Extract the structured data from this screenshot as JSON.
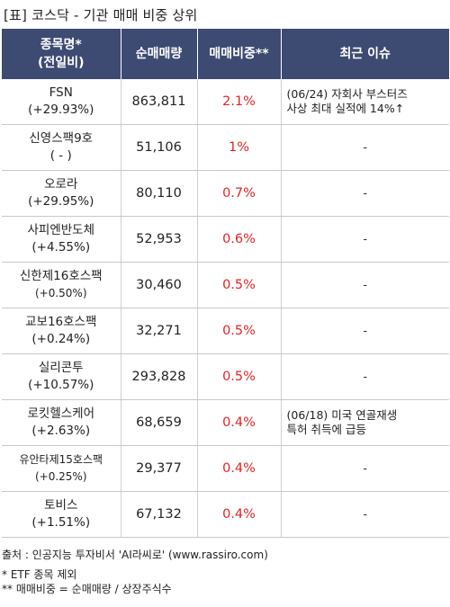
{
  "title": "[표] 코스닥 - 기관 매매 비중 상위",
  "headers": {
    "name_line1": "종목명*",
    "name_line2": "(전일비)",
    "volume": "순매매량",
    "ratio": "매매비중**",
    "issue": "최근 이슈"
  },
  "rows": [
    {
      "name": "FSN",
      "change": "(+29.93%)",
      "volume": "863,811",
      "ratio": "2.1%",
      "issue_line1": "(06/24) 자회사 부스터즈",
      "issue_line2": "사상 최대 실적에 14%↑"
    },
    {
      "name": "신영스팩9호",
      "change": "( - )",
      "volume": "51,106",
      "ratio": "1%",
      "issue_line1": "-",
      "issue_line2": ""
    },
    {
      "name": "오로라",
      "change": "(+29.95%)",
      "volume": "80,110",
      "ratio": "0.7%",
      "issue_line1": "-",
      "issue_line2": ""
    },
    {
      "name": "사피엔반도체",
      "change": "(+4.55%)",
      "volume": "52,953",
      "ratio": "0.6%",
      "issue_line1": "-",
      "issue_line2": ""
    },
    {
      "name": "신한제16호스팩",
      "change": "(+0.50%)",
      "volume": "30,460",
      "ratio": "0.5%",
      "issue_line1": "-",
      "issue_line2": ""
    },
    {
      "name": "교보16호스팩",
      "change": "(+0.24%)",
      "volume": "32,271",
      "ratio": "0.5%",
      "issue_line1": "-",
      "issue_line2": ""
    },
    {
      "name": "실리콘투",
      "change": "(+10.57%)",
      "volume": "293,828",
      "ratio": "0.5%",
      "issue_line1": "-",
      "issue_line2": ""
    },
    {
      "name": "로킷헬스케어",
      "change": "(+2.63%)",
      "volume": "68,659",
      "ratio": "0.4%",
      "issue_line1": "(06/18) 미국 연골재생",
      "issue_line2": "특허 취득에 급등"
    },
    {
      "name": "유안타제15호스팩",
      "change": "(+0.25%)",
      "volume": "29,377",
      "ratio": "0.4%",
      "issue_line1": "-",
      "issue_line2": ""
    },
    {
      "name": "토비스",
      "change": "(+1.51%)",
      "volume": "67,132",
      "ratio": "0.4%",
      "issue_line1": "-",
      "issue_line2": ""
    }
  ],
  "footer": {
    "source": "출처 : 인공지능 투자비서 'AI라씨로' (www.rassiro.com)",
    "note1": "* ETF 종목 제외",
    "note2": "** 매매비중 = 순매매량 / 상장주식수"
  },
  "colors": {
    "header_bg": "#3d4a72",
    "ratio_text": "#e32424"
  }
}
